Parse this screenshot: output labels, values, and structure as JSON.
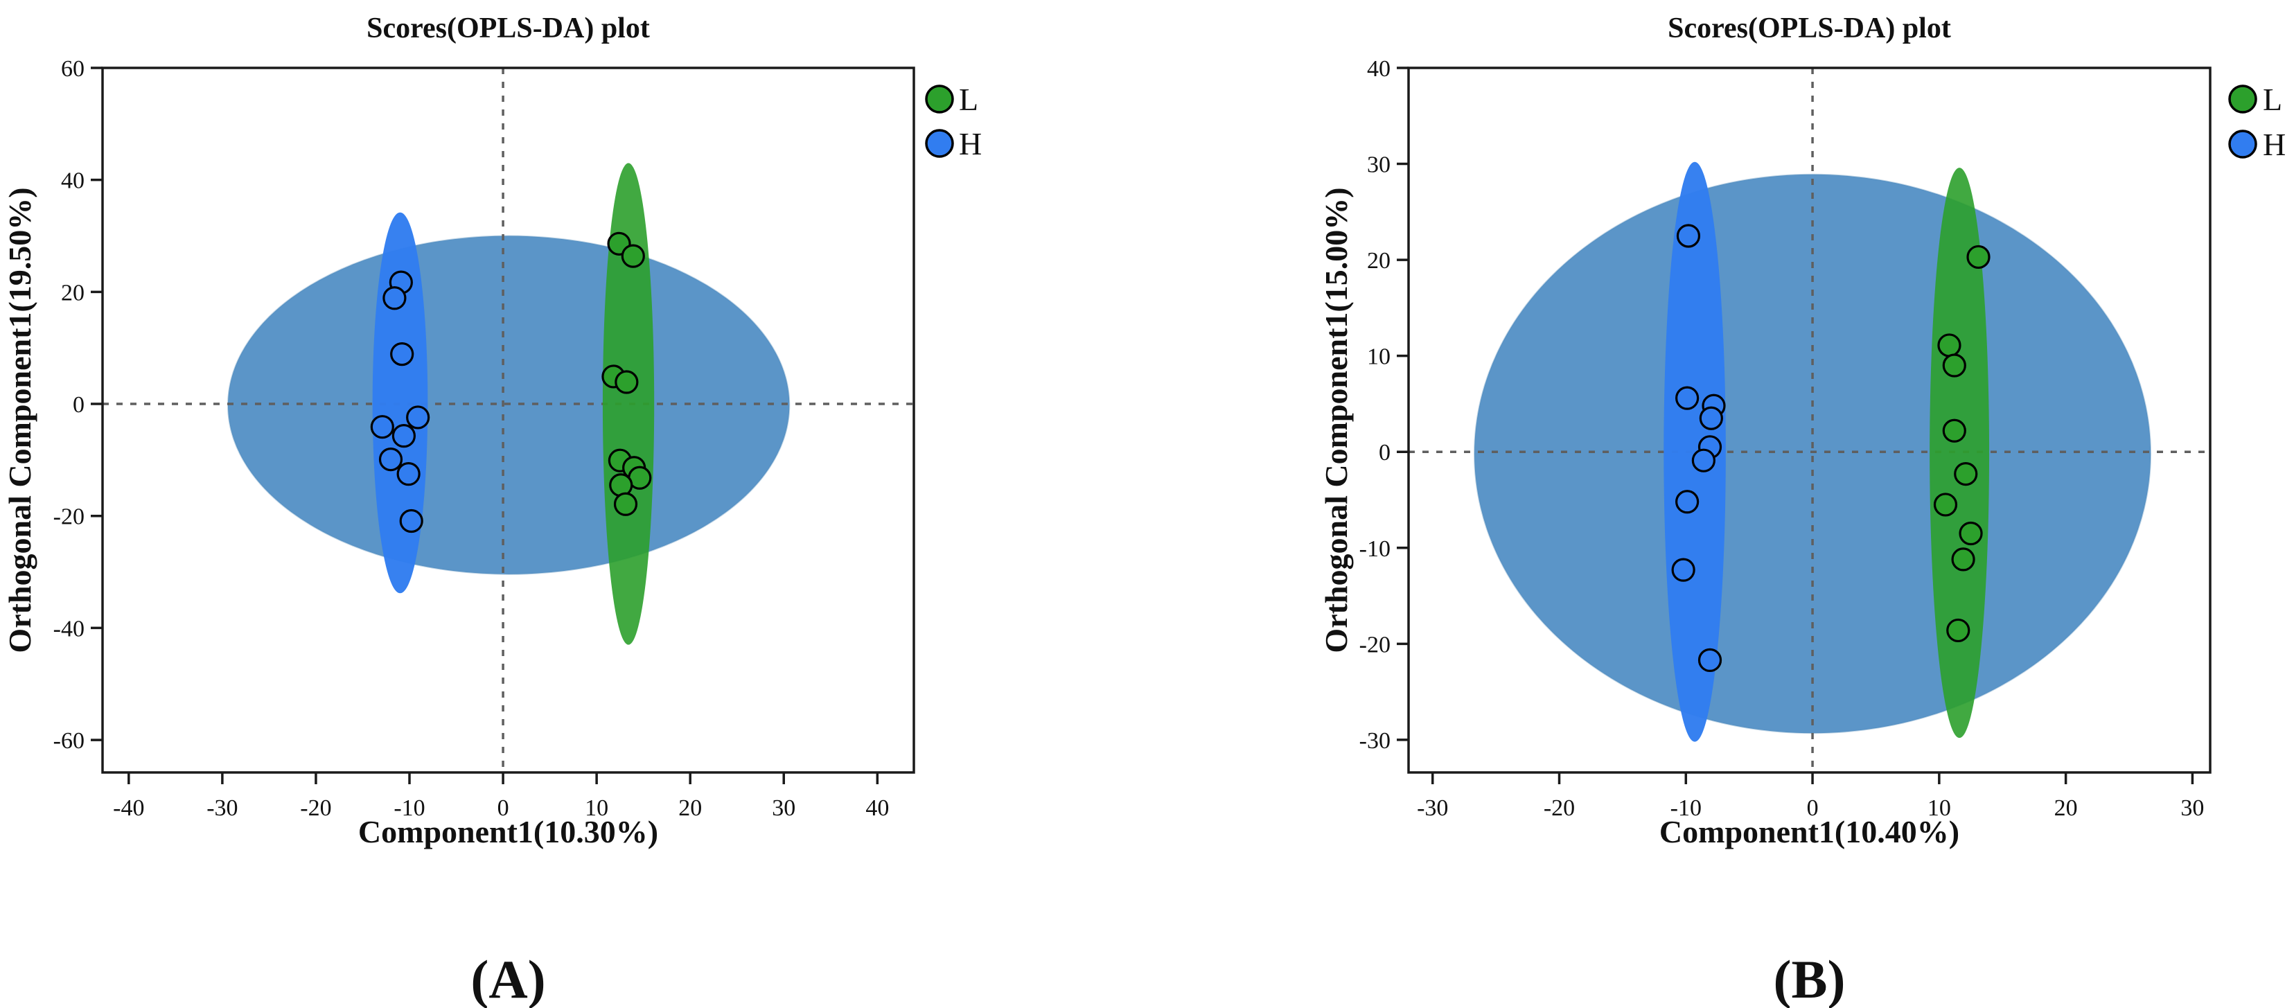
{
  "figure": {
    "background": "#ffffff",
    "kind": "OPLS-DA score plots, two panels"
  },
  "colors": {
    "l_green": "#2ca02c",
    "h_blue": "#317df0",
    "hotelling_fill": "#5b95c8",
    "hotelling_edge": "#4a86b6",
    "dashed_line": "#5f5f5f",
    "frame": "#1a1a1a",
    "marker_outline": "#000000"
  },
  "legend": {
    "items": [
      {
        "label": "L",
        "color": "#2ca02c"
      },
      {
        "label": "H",
        "color": "#317df0"
      }
    ]
  },
  "chart_data": [
    {
      "type": "scatter",
      "title": "Scores(OPLS-DA) plot",
      "xlabel": "Component1(10.30%)",
      "ylabel": "Orthogonal Component1(19.50%)",
      "caption": "(A)",
      "xlim": [
        -42.8,
        43.9
      ],
      "ylim": [
        -65.8,
        60
      ],
      "xticks": [
        -40,
        -30,
        -20,
        -10,
        0,
        10,
        20,
        30,
        40
      ],
      "yticks": [
        60,
        40,
        20,
        0,
        -20,
        -40,
        -60
      ],
      "grid": false,
      "zero_lines": "dashed at x=0 and y=0",
      "legend_position": "outside top-right",
      "ellipses": [
        {
          "name": "hotelling-95",
          "cx": 0.6,
          "cy": -0.2,
          "rx": 30.0,
          "ry": 30.2,
          "color": "#5b95c8",
          "opacity": 1
        },
        {
          "name": "group-H",
          "cx": -11.0,
          "cy": 0.2,
          "rx": 2.95,
          "ry": 34.0,
          "color": "#317df0",
          "opacity": 0.97
        },
        {
          "name": "group-L",
          "cx": 13.4,
          "cy": 0.0,
          "rx": 2.75,
          "ry": 43.0,
          "color": "#2ca02c",
          "opacity": 0.9
        }
      ],
      "series": [
        {
          "name": "L",
          "color": "#2ca02c",
          "points": [
            [
              12.4,
              28.6
            ],
            [
              13.9,
              26.4
            ],
            [
              11.8,
              4.9
            ],
            [
              13.2,
              3.9
            ],
            [
              12.5,
              -10.1
            ],
            [
              14.0,
              -11.4
            ],
            [
              14.6,
              -13.2
            ],
            [
              12.6,
              -14.5
            ],
            [
              13.1,
              -17.9
            ]
          ]
        },
        {
          "name": "H",
          "color": "#317df0",
          "points": [
            [
              -10.9,
              21.7
            ],
            [
              -11.6,
              18.9
            ],
            [
              -10.8,
              8.9
            ],
            [
              -12.9,
              -4.1
            ],
            [
              -9.1,
              -2.4
            ],
            [
              -10.6,
              -5.7
            ],
            [
              -12.0,
              -9.9
            ],
            [
              -10.1,
              -12.5
            ],
            [
              -9.8,
              -20.9
            ]
          ]
        }
      ]
    },
    {
      "type": "scatter",
      "title": "Scores(OPLS-DA) plot",
      "xlabel": "Component1(10.40%)",
      "ylabel": "Orthogonal Component1(15.00%)",
      "caption": "(B)",
      "xlim": [
        -31.9,
        31.4
      ],
      "ylim": [
        -33.4,
        40
      ],
      "xticks": [
        -30,
        -20,
        -10,
        0,
        10,
        20,
        30
      ],
      "yticks": [
        40,
        30,
        20,
        10,
        0,
        -10,
        -20,
        -30
      ],
      "grid": false,
      "zero_lines": "dashed at x=0 and y=0",
      "legend_position": "outside top-right",
      "ellipses": [
        {
          "name": "hotelling-95",
          "cx": 0.0,
          "cy": -0.2,
          "rx": 26.7,
          "ry": 29.1,
          "color": "#5b95c8",
          "opacity": 1
        },
        {
          "name": "group-H",
          "cx": -9.3,
          "cy": 0.0,
          "rx": 2.45,
          "ry": 30.2,
          "color": "#317df0",
          "opacity": 0.97
        },
        {
          "name": "group-L",
          "cx": 11.6,
          "cy": -0.1,
          "rx": 2.35,
          "ry": 29.7,
          "color": "#2ca02c",
          "opacity": 0.9
        }
      ],
      "series": [
        {
          "name": "L",
          "color": "#2ca02c",
          "points": [
            [
              13.1,
              20.3
            ],
            [
              10.8,
              11.1
            ],
            [
              11.2,
              9.0
            ],
            [
              11.2,
              2.2
            ],
            [
              12.1,
              -2.3
            ],
            [
              10.5,
              -5.5
            ],
            [
              12.5,
              -8.5
            ],
            [
              11.9,
              -11.2
            ],
            [
              11.5,
              -18.6
            ]
          ]
        },
        {
          "name": "H",
          "color": "#317df0",
          "points": [
            [
              -9.8,
              22.5
            ],
            [
              -9.9,
              5.6
            ],
            [
              -7.8,
              4.8
            ],
            [
              -8.0,
              3.5
            ],
            [
              -8.1,
              0.5
            ],
            [
              -8.6,
              -0.9
            ],
            [
              -9.9,
              -5.2
            ],
            [
              -10.2,
              -12.3
            ],
            [
              -8.1,
              -21.7
            ]
          ]
        }
      ]
    }
  ]
}
